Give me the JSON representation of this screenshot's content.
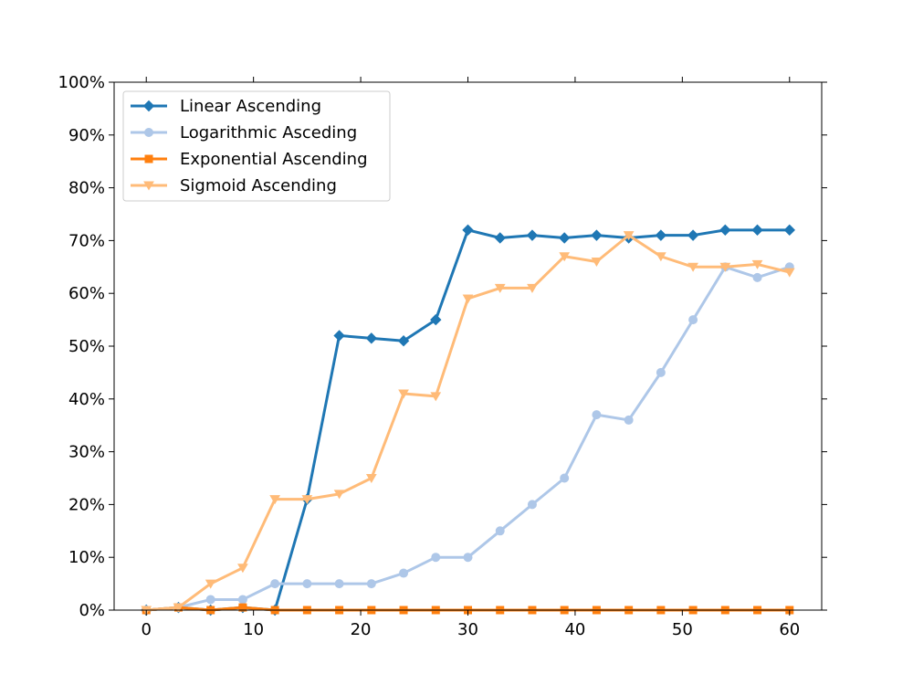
{
  "chart_data": {
    "type": "line",
    "title": "",
    "xlabel": "",
    "ylabel": "",
    "xlim": [
      -3,
      63
    ],
    "ylim": [
      0,
      1
    ],
    "x_ticks": [
      0,
      10,
      20,
      30,
      40,
      50,
      60
    ],
    "y_ticks": [
      0,
      0.1,
      0.2,
      0.3,
      0.4,
      0.5,
      0.6,
      0.7,
      0.8,
      0.9,
      1.0
    ],
    "y_tick_labels": [
      "0%",
      "10%",
      "20%",
      "30%",
      "40%",
      "50%",
      "60%",
      "70%",
      "80%",
      "90%",
      "100%"
    ],
    "x_tick_labels": [
      "0",
      "10",
      "20",
      "30",
      "40",
      "50",
      "60"
    ],
    "grid": false,
    "legend_position": "top-left",
    "x": [
      0,
      3,
      6,
      9,
      12,
      15,
      18,
      21,
      24,
      27,
      30,
      33,
      36,
      39,
      42,
      45,
      48,
      51,
      54,
      57,
      60
    ],
    "series": [
      {
        "name": "Linear Ascending",
        "color": "#1f77b4",
        "marker": "diamond",
        "values": [
          0.0,
          0.005,
          0.0,
          0.005,
          0.0,
          0.21,
          0.52,
          0.515,
          0.51,
          0.55,
          0.72,
          0.705,
          0.71,
          0.705,
          0.71,
          0.705,
          0.71,
          0.71,
          0.72,
          0.72,
          0.72
        ]
      },
      {
        "name": "Logarithmic Asceding",
        "color": "#aec7e8",
        "marker": "circle",
        "values": [
          0.0,
          0.005,
          0.02,
          0.02,
          0.05,
          0.05,
          0.05,
          0.05,
          0.07,
          0.1,
          0.1,
          0.15,
          0.2,
          0.25,
          0.37,
          0.36,
          0.45,
          0.55,
          0.65,
          0.63,
          0.65
        ]
      },
      {
        "name": "Exponential Ascending",
        "color": "#ff7f0e",
        "marker": "square",
        "values": [
          0.0,
          0.005,
          0.0,
          0.005,
          0.0,
          0.0,
          0.0,
          0.0,
          0.0,
          0.0,
          0.0,
          0.0,
          0.0,
          0.0,
          0.0,
          0.0,
          0.0,
          0.0,
          0.0,
          0.0,
          0.0
        ]
      },
      {
        "name": "Sigmoid Ascending",
        "color": "#ffbb78",
        "marker": "triangle-down",
        "values": [
          0.0,
          0.005,
          0.05,
          0.08,
          0.21,
          0.21,
          0.22,
          0.25,
          0.41,
          0.405,
          0.59,
          0.61,
          0.61,
          0.67,
          0.66,
          0.71,
          0.67,
          0.65,
          0.65,
          0.655,
          0.64
        ]
      }
    ]
  }
}
